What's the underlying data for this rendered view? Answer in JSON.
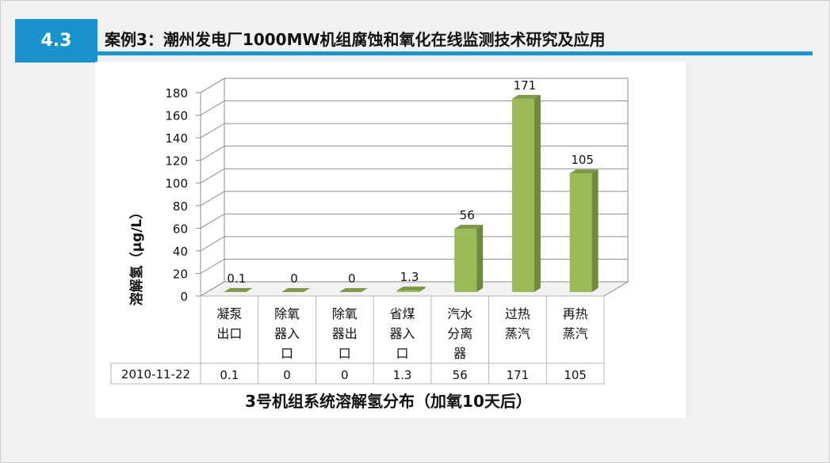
{
  "slide": {
    "section_number": "4.3",
    "title": "案例3：潮州发电厂1000MW机组腐蚀和氧化在线监测技术研究及应用"
  },
  "colors": {
    "accent": "#1a92cc",
    "bar_front": "#9bbb59",
    "bar_side": "#71893f",
    "bar_top": "#7e9a48"
  },
  "chart_data": {
    "type": "bar",
    "title": "3号机组系统溶解氢分布（加氧10天后）",
    "ylabel": "溶解氢（μg/L）",
    "xlabel": "",
    "ylim": [
      0,
      180
    ],
    "yticks": [
      0,
      20,
      40,
      60,
      80,
      100,
      120,
      140,
      160,
      180
    ],
    "categories": [
      [
        "凝泵",
        "出口"
      ],
      [
        "除氧",
        "器入",
        "口"
      ],
      [
        "除氧",
        "器出",
        "口"
      ],
      [
        "省煤",
        "器入",
        "口"
      ],
      [
        "汽水",
        "分离",
        "器"
      ],
      [
        "过热",
        "蒸汽"
      ],
      [
        "再热",
        "蒸汽"
      ]
    ],
    "series": [
      {
        "name": "2010-11-22",
        "values": [
          0.1,
          0,
          0,
          1.3,
          56,
          171,
          105
        ],
        "labels": [
          "0.1",
          "0",
          "0",
          "1.3",
          "56",
          "171",
          "105"
        ]
      }
    ],
    "grid": true,
    "legend": "table"
  }
}
